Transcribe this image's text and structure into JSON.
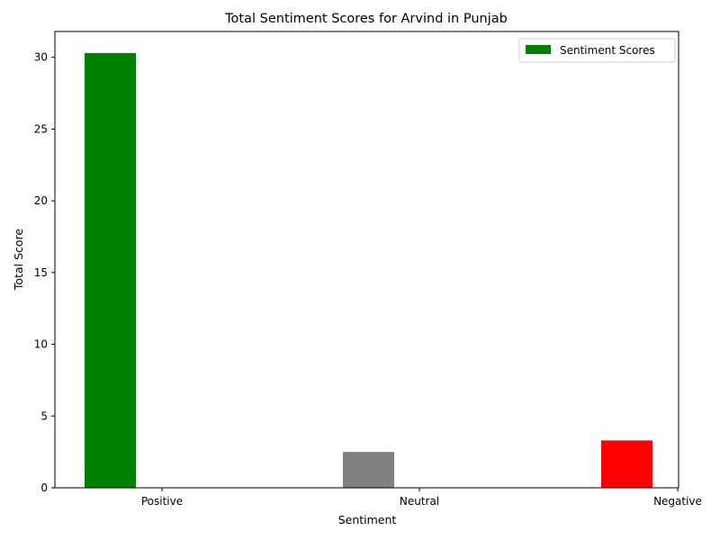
{
  "chart_data": {
    "type": "bar",
    "title": "Total Sentiment Scores for Arvind in Punjab",
    "xlabel": "Sentiment",
    "ylabel": "Total Score",
    "categories": [
      "Positive",
      "Neutral",
      "Negative"
    ],
    "series": [
      {
        "name": "Sentiment Scores",
        "values": [
          30.3,
          2.5,
          3.3
        ],
        "colors": [
          "#008000",
          "#808080",
          "#ff0000"
        ]
      }
    ],
    "ylim": [
      0,
      31.8
    ],
    "yticks": [
      0,
      5,
      10,
      15,
      20,
      25,
      30
    ],
    "grid": false,
    "legend_position": "top-right"
  }
}
